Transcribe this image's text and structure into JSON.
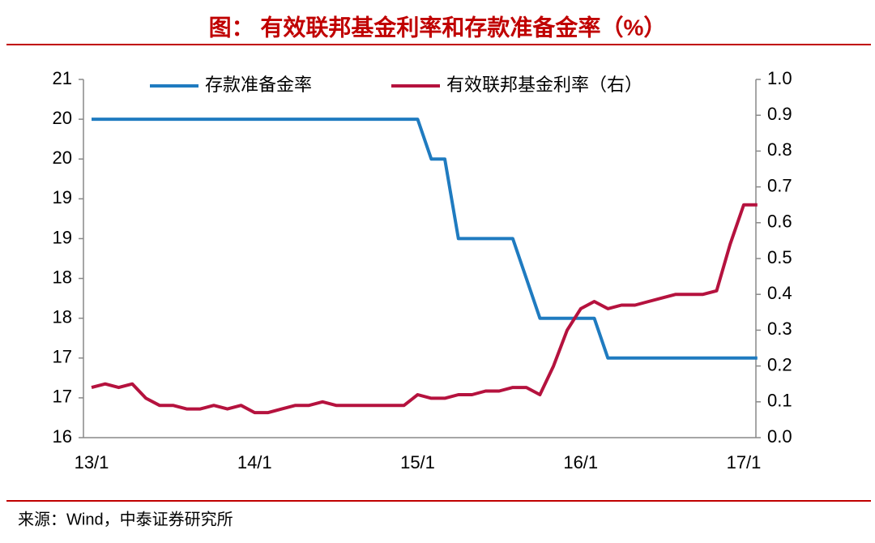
{
  "chart_data": {
    "type": "line",
    "title": "图：  有效联邦基金利率和存款准备金率（%）",
    "source": "来源：Wind，中泰证券研究所",
    "categories": [
      "13/1",
      null,
      null,
      null,
      null,
      null,
      null,
      null,
      null,
      null,
      null,
      null,
      "14/1",
      null,
      null,
      null,
      null,
      null,
      null,
      null,
      null,
      null,
      null,
      null,
      "15/1",
      null,
      null,
      null,
      null,
      null,
      null,
      null,
      null,
      null,
      null,
      null,
      "16/1",
      null,
      null,
      null,
      null,
      null,
      null,
      null,
      null,
      null,
      null,
      null,
      "17/1",
      null
    ],
    "series": [
      {
        "name": "存款准备金率",
        "color": "#1f7bc0",
        "axis": "y",
        "values": [
          20,
          20,
          20,
          20,
          20,
          20,
          20,
          20,
          20,
          20,
          20,
          20,
          20,
          20,
          20,
          20,
          20,
          20,
          20,
          20,
          20,
          20,
          20,
          20,
          20,
          19.5,
          19.5,
          18.5,
          18.5,
          18.5,
          18.5,
          18.5,
          18,
          17.5,
          17.5,
          17.5,
          17.5,
          17.5,
          17,
          17,
          17,
          17,
          17,
          17,
          17,
          17,
          17,
          17,
          17,
          17
        ]
      },
      {
        "name": "有效联邦基金利率（右）",
        "color": "#b5123e",
        "axis": "y2",
        "values": [
          0.14,
          0.15,
          0.14,
          0.15,
          0.11,
          0.09,
          0.09,
          0.08,
          0.08,
          0.09,
          0.08,
          0.09,
          0.07,
          0.07,
          0.08,
          0.09,
          0.09,
          0.1,
          0.09,
          0.09,
          0.09,
          0.09,
          0.09,
          0.09,
          0.12,
          0.11,
          0.11,
          0.12,
          0.12,
          0.13,
          0.13,
          0.14,
          0.14,
          0.12,
          0.2,
          0.3,
          0.36,
          0.38,
          0.36,
          0.37,
          0.37,
          0.38,
          0.39,
          0.4,
          0.4,
          0.4,
          0.41,
          0.54,
          0.65,
          0.65
        ]
      }
    ],
    "ylim": [
      16,
      20.5
    ],
    "yticks": [
      {
        "value": 16,
        "label": "16"
      },
      {
        "value": 16.5,
        "label": "17"
      },
      {
        "value": 17,
        "label": "17"
      },
      {
        "value": 17.5,
        "label": "18"
      },
      {
        "value": 18,
        "label": "18"
      },
      {
        "value": 18.5,
        "label": "19"
      },
      {
        "value": 19,
        "label": "19"
      },
      {
        "value": 19.5,
        "label": "20"
      },
      {
        "value": 20,
        "label": "20"
      },
      {
        "value": 20.5,
        "label": "21"
      }
    ],
    "y2lim": [
      0,
      1
    ],
    "y2ticks": [
      {
        "value": 0,
        "label": "0.0"
      },
      0.1,
      0.2,
      0.3,
      0.4,
      0.5,
      0.6,
      0.7,
      0.8,
      0.9,
      {
        "value": 1,
        "label": "1.0"
      }
    ]
  }
}
